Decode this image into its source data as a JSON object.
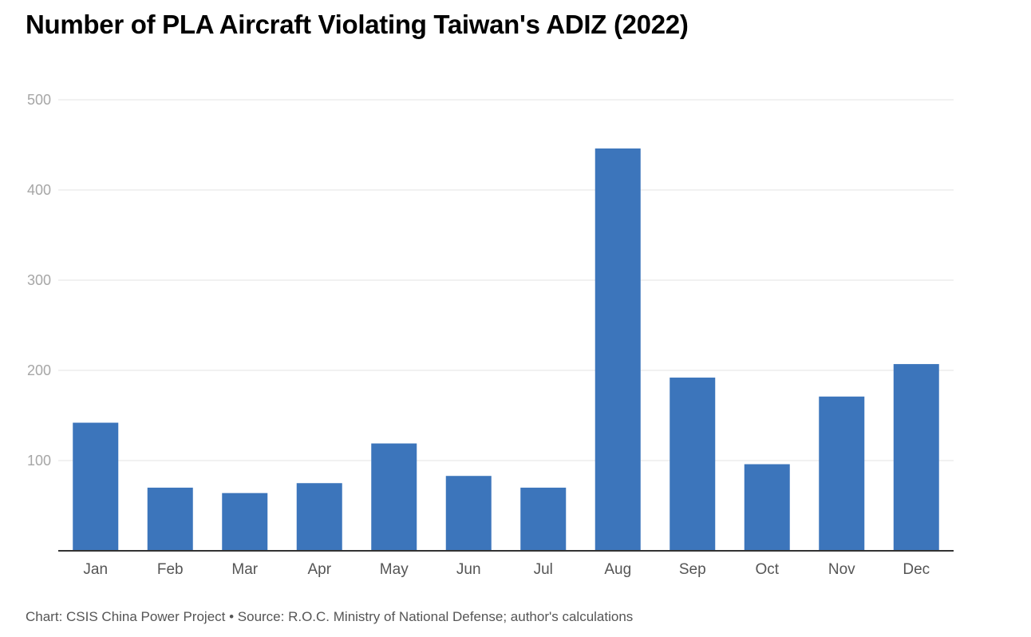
{
  "chart_data": {
    "type": "bar",
    "title": "Number of PLA Aircraft Violating Taiwan's ADIZ (2022)",
    "categories": [
      "Jan",
      "Feb",
      "Mar",
      "Apr",
      "May",
      "Jun",
      "Jul",
      "Aug",
      "Sep",
      "Oct",
      "Nov",
      "Dec"
    ],
    "values": [
      142,
      70,
      64,
      75,
      119,
      83,
      70,
      446,
      192,
      96,
      171,
      207
    ],
    "yticks": [
      "100",
      "200",
      "300",
      "400",
      "500"
    ],
    "ylim": [
      0,
      500
    ],
    "xlabel": "",
    "ylabel": "",
    "grid": true,
    "bar_color": "#3c75bb",
    "source": "Chart: CSIS China Power Project • Source: R.O.C. Ministry of National Defense; author's calculations"
  }
}
